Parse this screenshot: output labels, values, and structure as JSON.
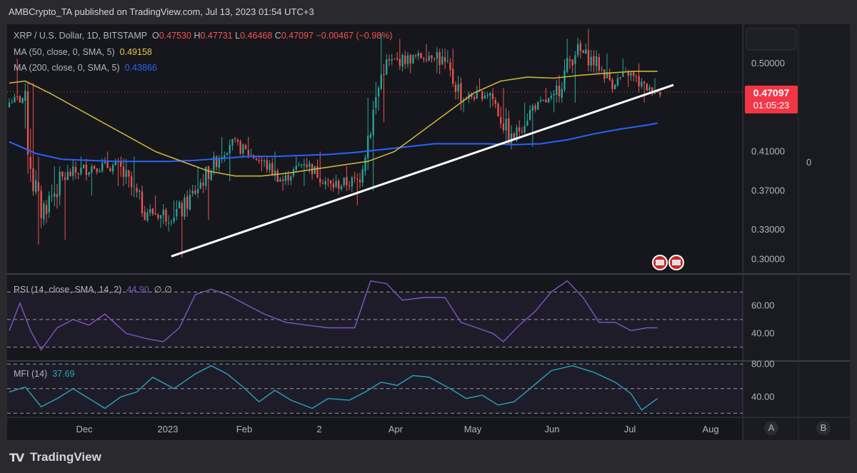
{
  "header": {
    "publisher_text": "AMBCrypto_TA published on TradingView.com, Jul 13, 2023 01:54 UTC+3"
  },
  "legend_main": {
    "symbol": "XRP / U.S. Dollar, 1D, BITSTAMP",
    "o_label": "O",
    "o": "0.47530",
    "h_label": "H",
    "h": "0.47731",
    "l_label": "L",
    "l": "0.46468",
    "c_label": "C",
    "c": "0.47097",
    "change": "−0.00467 (−0.98%)",
    "ma50_label": "MA (50, close, 0, SMA, 5)",
    "ma50_value": "0.49158",
    "ma200_label": "MA (200, close, 0, SMA, 5)",
    "ma200_value": "0.43866"
  },
  "legend_rsi": {
    "label": "RSI (14, close, SMA, 14, 2)",
    "value": "44.90",
    "extra": "∅ ∅"
  },
  "legend_mfi": {
    "label": "MFI (14)",
    "value": "37.69"
  },
  "price_badge": {
    "price": "0.47097",
    "countdown": "01:05:23"
  },
  "scale_buttons": {
    "a": "A",
    "b": "B"
  },
  "side_value": "0",
  "footer": {
    "logo_text": "TradingView"
  },
  "colors": {
    "bg": "#16171c",
    "up": "#26a69a",
    "down": "#ef5350",
    "ma50": "#c9b23a",
    "ma200": "#2962ff",
    "trendline": "#ffffff",
    "rsi": "#7e57c2",
    "mfi": "#26a4b8",
    "price_badge": "#f23645"
  },
  "chart_data": {
    "type": "candlestick",
    "symbol": "XRP / U.S. Dollar, 1D, BITSTAMP",
    "x_tick_labels": [
      "Dec",
      "2023",
      "Feb",
      "2",
      "Apr",
      "May",
      "Jun",
      "Jul",
      "Aug"
    ],
    "price_axis": {
      "ticks": [
        0.5,
        0.41,
        0.37,
        0.33,
        0.3
      ],
      "tick_labels": [
        "0.50000",
        "0.41000",
        "0.37000",
        "0.33000",
        "0.30000"
      ],
      "ylim": [
        0.285,
        0.54
      ]
    },
    "candle_blocks": [
      {
        "from": 0,
        "to": 6,
        "start": 0.455,
        "end": 0.465,
        "hi": 0.505,
        "lo": 0.46
      },
      {
        "from": 6,
        "to": 12,
        "start": 0.465,
        "end": 0.345,
        "hi": 0.48,
        "lo": 0.315
      },
      {
        "from": 12,
        "to": 22,
        "start": 0.345,
        "end": 0.385,
        "hi": 0.395,
        "lo": 0.32
      },
      {
        "from": 22,
        "to": 32,
        "start": 0.385,
        "end": 0.395,
        "hi": 0.405,
        "lo": 0.365
      },
      {
        "from": 32,
        "to": 42,
        "start": 0.395,
        "end": 0.395,
        "hi": 0.41,
        "lo": 0.375
      },
      {
        "from": 42,
        "to": 52,
        "start": 0.395,
        "end": 0.35,
        "hi": 0.405,
        "lo": 0.34
      },
      {
        "from": 52,
        "to": 58,
        "start": 0.35,
        "end": 0.345,
        "hi": 0.365,
        "lo": 0.332
      },
      {
        "from": 58,
        "to": 66,
        "start": 0.345,
        "end": 0.35,
        "hi": 0.36,
        "lo": 0.302
      },
      {
        "from": 66,
        "to": 76,
        "start": 0.35,
        "end": 0.39,
        "hi": 0.395,
        "lo": 0.34
      },
      {
        "from": 76,
        "to": 84,
        "start": 0.39,
        "end": 0.42,
        "hi": 0.425,
        "lo": 0.38
      },
      {
        "from": 84,
        "to": 96,
        "start": 0.42,
        "end": 0.4,
        "hi": 0.425,
        "lo": 0.39
      },
      {
        "from": 96,
        "to": 104,
        "start": 0.4,
        "end": 0.38,
        "hi": 0.41,
        "lo": 0.37
      },
      {
        "from": 104,
        "to": 112,
        "start": 0.38,
        "end": 0.4,
        "hi": 0.405,
        "lo": 0.375
      },
      {
        "from": 112,
        "to": 122,
        "start": 0.4,
        "end": 0.375,
        "hi": 0.41,
        "lo": 0.37
      },
      {
        "from": 122,
        "to": 132,
        "start": 0.375,
        "end": 0.38,
        "hi": 0.395,
        "lo": 0.355
      },
      {
        "from": 132,
        "to": 138,
        "start": 0.38,
        "end": 0.45,
        "hi": 0.465,
        "lo": 0.37
      },
      {
        "from": 138,
        "to": 142,
        "start": 0.45,
        "end": 0.5,
        "hi": 0.53,
        "lo": 0.44
      },
      {
        "from": 142,
        "to": 152,
        "start": 0.5,
        "end": 0.505,
        "hi": 0.525,
        "lo": 0.49
      },
      {
        "from": 152,
        "to": 162,
        "start": 0.505,
        "end": 0.51,
        "hi": 0.52,
        "lo": 0.49
      },
      {
        "from": 162,
        "to": 172,
        "start": 0.51,
        "end": 0.465,
        "hi": 0.515,
        "lo": 0.45
      },
      {
        "from": 172,
        "to": 182,
        "start": 0.465,
        "end": 0.47,
        "hi": 0.485,
        "lo": 0.455
      },
      {
        "from": 182,
        "to": 190,
        "start": 0.47,
        "end": 0.42,
        "hi": 0.475,
        "lo": 0.412
      },
      {
        "from": 190,
        "to": 198,
        "start": 0.42,
        "end": 0.455,
        "hi": 0.46,
        "lo": 0.415
      },
      {
        "from": 198,
        "to": 206,
        "start": 0.455,
        "end": 0.465,
        "hi": 0.475,
        "lo": 0.45
      },
      {
        "from": 206,
        "to": 214,
        "start": 0.465,
        "end": 0.515,
        "hi": 0.525,
        "lo": 0.46
      },
      {
        "from": 214,
        "to": 222,
        "start": 0.515,
        "end": 0.5,
        "hi": 0.535,
        "lo": 0.49
      },
      {
        "from": 222,
        "to": 228,
        "start": 0.5,
        "end": 0.48,
        "hi": 0.51,
        "lo": 0.47
      },
      {
        "from": 228,
        "to": 234,
        "start": 0.48,
        "end": 0.49,
        "hi": 0.505,
        "lo": 0.476
      },
      {
        "from": 234,
        "to": 240,
        "start": 0.49,
        "end": 0.475,
        "hi": 0.5,
        "lo": 0.46
      },
      {
        "from": 240,
        "to": 246,
        "start": 0.475,
        "end": 0.47,
        "hi": 0.485,
        "lo": 0.465
      }
    ],
    "ma50_points": [
      [
        0,
        0.48
      ],
      [
        6,
        0.482
      ],
      [
        15,
        0.47
      ],
      [
        25,
        0.455
      ],
      [
        35,
        0.44
      ],
      [
        45,
        0.425
      ],
      [
        55,
        0.41
      ],
      [
        65,
        0.4
      ],
      [
        75,
        0.39
      ],
      [
        85,
        0.385
      ],
      [
        95,
        0.385
      ],
      [
        105,
        0.388
      ],
      [
        115,
        0.392
      ],
      [
        125,
        0.396
      ],
      [
        135,
        0.4
      ],
      [
        145,
        0.41
      ],
      [
        155,
        0.43
      ],
      [
        165,
        0.45
      ],
      [
        175,
        0.47
      ],
      [
        185,
        0.482
      ],
      [
        195,
        0.486
      ],
      [
        205,
        0.485
      ],
      [
        215,
        0.488
      ],
      [
        225,
        0.49
      ],
      [
        235,
        0.492
      ],
      [
        244,
        0.492
      ]
    ],
    "ma200_points": [
      [
        0,
        0.42
      ],
      [
        10,
        0.408
      ],
      [
        20,
        0.402
      ],
      [
        30,
        0.401
      ],
      [
        40,
        0.4
      ],
      [
        50,
        0.4
      ],
      [
        60,
        0.4
      ],
      [
        70,
        0.401
      ],
      [
        80,
        0.403
      ],
      [
        90,
        0.405
      ],
      [
        100,
        0.405
      ],
      [
        110,
        0.406
      ],
      [
        120,
        0.407
      ],
      [
        130,
        0.409
      ],
      [
        140,
        0.412
      ],
      [
        150,
        0.415
      ],
      [
        160,
        0.418
      ],
      [
        170,
        0.418
      ],
      [
        180,
        0.418
      ],
      [
        190,
        0.417
      ],
      [
        200,
        0.418
      ],
      [
        210,
        0.422
      ],
      [
        220,
        0.428
      ],
      [
        230,
        0.433
      ],
      [
        240,
        0.437
      ],
      [
        244,
        0.439
      ]
    ],
    "trendline": [
      [
        61,
        0.303
      ],
      [
        250,
        0.478
      ]
    ],
    "last_price": 0.47097,
    "rsi": {
      "label": "RSI (14, close, SMA, 14, 2)",
      "ticks": [
        60,
        40
      ],
      "bands": [
        70,
        50,
        30
      ],
      "ylim": [
        20,
        82
      ],
      "points": [
        [
          0,
          42
        ],
        [
          4,
          62
        ],
        [
          8,
          42
        ],
        [
          12,
          28
        ],
        [
          18,
          44
        ],
        [
          24,
          50
        ],
        [
          30,
          46
        ],
        [
          36,
          54
        ],
        [
          44,
          40
        ],
        [
          52,
          36
        ],
        [
          58,
          34
        ],
        [
          64,
          44
        ],
        [
          70,
          68
        ],
        [
          76,
          72
        ],
        [
          82,
          68
        ],
        [
          88,
          62
        ],
        [
          96,
          54
        ],
        [
          104,
          48
        ],
        [
          112,
          46
        ],
        [
          120,
          44
        ],
        [
          130,
          44
        ],
        [
          136,
          78
        ],
        [
          142,
          76
        ],
        [
          148,
          64
        ],
        [
          156,
          66
        ],
        [
          164,
          66
        ],
        [
          170,
          48
        ],
        [
          176,
          44
        ],
        [
          182,
          40
        ],
        [
          186,
          34
        ],
        [
          192,
          46
        ],
        [
          198,
          56
        ],
        [
          204,
          70
        ],
        [
          210,
          78
        ],
        [
          216,
          66
        ],
        [
          222,
          48
        ],
        [
          228,
          48
        ],
        [
          234,
          42
        ],
        [
          240,
          44
        ],
        [
          244,
          44
        ]
      ]
    },
    "mfi": {
      "label": "MFI (14)",
      "ticks": [
        80,
        40
      ],
      "bands": [
        80,
        50,
        20
      ],
      "ylim": [
        15,
        82
      ],
      "points": [
        [
          0,
          46
        ],
        [
          6,
          52
        ],
        [
          12,
          28
        ],
        [
          18,
          38
        ],
        [
          24,
          50
        ],
        [
          30,
          38
        ],
        [
          36,
          26
        ],
        [
          42,
          40
        ],
        [
          48,
          46
        ],
        [
          54,
          64
        ],
        [
          62,
          50
        ],
        [
          70,
          68
        ],
        [
          76,
          78
        ],
        [
          82,
          68
        ],
        [
          88,
          52
        ],
        [
          94,
          34
        ],
        [
          100,
          48
        ],
        [
          106,
          36
        ],
        [
          114,
          26
        ],
        [
          120,
          38
        ],
        [
          128,
          36
        ],
        [
          134,
          46
        ],
        [
          140,
          58
        ],
        [
          146,
          54
        ],
        [
          152,
          66
        ],
        [
          158,
          64
        ],
        [
          166,
          50
        ],
        [
          172,
          38
        ],
        [
          178,
          42
        ],
        [
          184,
          30
        ],
        [
          190,
          34
        ],
        [
          196,
          50
        ],
        [
          204,
          72
        ],
        [
          212,
          78
        ],
        [
          220,
          70
        ],
        [
          228,
          58
        ],
        [
          234,
          44
        ],
        [
          238,
          24
        ],
        [
          244,
          38
        ]
      ]
    }
  }
}
